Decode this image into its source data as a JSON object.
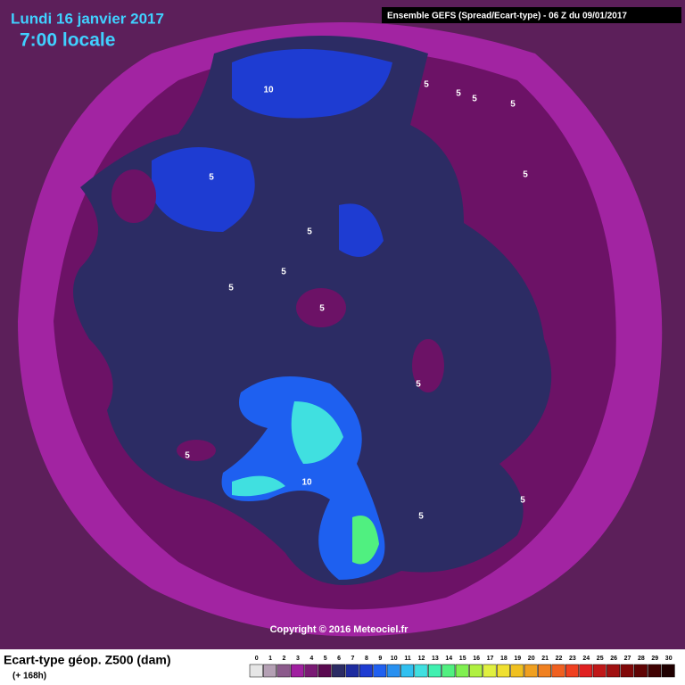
{
  "header": {
    "date": "Lundi 16 janvier 2017",
    "time": "7:00 locale",
    "model": "Ensemble GEFS  (Spread/Ecart-type) - 06 Z du 09/01/2017"
  },
  "map": {
    "contour_labels": [
      "10",
      "5",
      "5",
      "5",
      "5",
      "5",
      "5",
      "5",
      "5",
      "5",
      "5",
      "5",
      "5",
      "10",
      "5",
      "5"
    ],
    "copyright": "Copyright © 2016 Meteociel.fr"
  },
  "legend": {
    "title": "Ecart-type géop. Z500 (dam)",
    "lead": "(+ 168h)",
    "scale": [
      0,
      1,
      2,
      3,
      4,
      5,
      6,
      7,
      8,
      9,
      10,
      11,
      12,
      13,
      14,
      15,
      16,
      17,
      18,
      19,
      20,
      21,
      22,
      23,
      24,
      25,
      26,
      27,
      28,
      29,
      30
    ],
    "colors": [
      "#e6e6e6",
      "#b4a0b4",
      "#8c5a8c",
      "#a020a0",
      "#7a1a74",
      "#5a0a50",
      "#2c2c64",
      "#1e2ca0",
      "#1e3cd2",
      "#2060f0",
      "#2890f0",
      "#30c0f0",
      "#40e0e0",
      "#40f0b0",
      "#50f080",
      "#80f050",
      "#b0f040",
      "#e0f040",
      "#f0e030",
      "#f0c020",
      "#f0a020",
      "#f08020",
      "#f06020",
      "#f04020",
      "#e02020",
      "#c01818",
      "#a01010",
      "#800808",
      "#600404",
      "#400202",
      "#200000"
    ]
  }
}
